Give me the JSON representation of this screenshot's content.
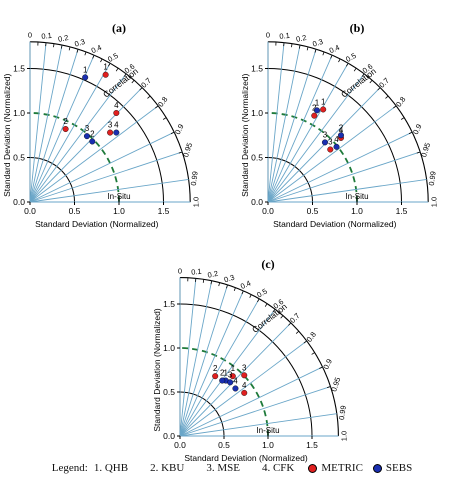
{
  "chart_data": [
    {
      "type": "scatter",
      "panel_label": "(a)",
      "xlabel": "Standard Deviation (Normalized)",
      "ylabel": "Standard Deviation (Normalized)",
      "correlation_label": "Correlation",
      "reference_label": "In-Situ",
      "reference_std": 1.0,
      "xlim": [
        0,
        1.8
      ],
      "ylim": [
        0,
        1.8
      ],
      "std_ticks": [
        "0.0",
        "0.5",
        "1.0",
        "1.5"
      ],
      "correlation_ticks": [
        "0",
        "0.1",
        "0.2",
        "0.3",
        "0.4",
        "0.5",
        "0.6",
        "0.7",
        "0.8",
        "0.9",
        "0.95",
        "0.99",
        "1.0"
      ],
      "series": [
        {
          "name": "METRIC",
          "color": "#e02020",
          "points": [
            {
              "label": "1",
              "x": 0.85,
              "y": 1.43
            },
            {
              "label": "2",
              "x": 0.4,
              "y": 0.82
            },
            {
              "label": "3",
              "x": 0.9,
              "y": 0.78
            },
            {
              "label": "4",
              "x": 0.97,
              "y": 1.0
            }
          ]
        },
        {
          "name": "SEBS",
          "color": "#1a2fb0",
          "points": [
            {
              "label": "1",
              "x": 0.62,
              "y": 1.4
            },
            {
              "label": "2",
              "x": 0.7,
              "y": 0.68
            },
            {
              "label": "3",
              "x": 0.64,
              "y": 0.74
            },
            {
              "label": "4",
              "x": 0.97,
              "y": 0.78
            }
          ]
        }
      ]
    },
    {
      "type": "scatter",
      "panel_label": "(b)",
      "xlabel": "Standard Deviation (Normalized)",
      "ylabel": "Standard Deviation (Normalized)",
      "correlation_label": "Correlation",
      "reference_label": "In-Situ",
      "reference_std": 1.0,
      "xlim": [
        0,
        1.8
      ],
      "ylim": [
        0,
        1.8
      ],
      "std_ticks": [
        "0.0",
        "0.5",
        "1.0",
        "1.5"
      ],
      "correlation_ticks": [
        "0",
        "0.1",
        "0.2",
        "0.3",
        "0.4",
        "0.5",
        "0.6",
        "0.7",
        "0.8",
        "0.9",
        "0.95",
        "0.99",
        "1.0"
      ],
      "series": [
        {
          "name": "METRIC",
          "color": "#e02020",
          "points": [
            {
              "label": "1",
              "x": 0.62,
              "y": 1.04
            },
            {
              "label": "2",
              "x": 0.52,
              "y": 0.97
            },
            {
              "label": "3",
              "x": 0.7,
              "y": 0.59
            },
            {
              "label": "4",
              "x": 0.82,
              "y": 0.72
            }
          ]
        },
        {
          "name": "SEBS",
          "color": "#1a2fb0",
          "points": [
            {
              "label": "1",
              "x": 0.55,
              "y": 1.03
            },
            {
              "label": "2",
              "x": 0.82,
              "y": 0.75
            },
            {
              "label": "3",
              "x": 0.64,
              "y": 0.67
            },
            {
              "label": "4",
              "x": 0.77,
              "y": 0.62
            }
          ]
        }
      ]
    },
    {
      "type": "scatter",
      "panel_label": "(c)",
      "xlabel": "Standard Deviation (Normalized)",
      "ylabel": "Standard Deviation (Normalized)",
      "correlation_label": "Correlation",
      "reference_label": "In-Situ",
      "reference_std": 1.0,
      "xlim": [
        0,
        1.8
      ],
      "ylim": [
        0,
        1.8
      ],
      "std_ticks": [
        "0.0",
        "0.5",
        "1.0",
        "1.5"
      ],
      "correlation_ticks": [
        "0",
        "0.1",
        "0.2",
        "0.3",
        "0.4",
        "0.5",
        "0.6",
        "0.7",
        "0.8",
        "0.9",
        "0.95",
        "0.99",
        "1.0"
      ],
      "series": [
        {
          "name": "METRIC",
          "color": "#e02020",
          "points": [
            {
              "label": "1",
              "x": 0.6,
              "y": 0.68
            },
            {
              "label": "2",
              "x": 0.4,
              "y": 0.68
            },
            {
              "label": "3",
              "x": 0.73,
              "y": 0.69
            },
            {
              "label": "4",
              "x": 0.73,
              "y": 0.49
            }
          ]
        },
        {
          "name": "SEBS",
          "color": "#1a2fb0",
          "points": [
            {
              "label": "1",
              "x": 0.52,
              "y": 0.63
            },
            {
              "label": "2",
              "x": 0.48,
              "y": 0.63
            },
            {
              "label": "3",
              "x": 0.57,
              "y": 0.61
            },
            {
              "label": "4",
              "x": 0.63,
              "y": 0.54
            }
          ]
        }
      ]
    }
  ],
  "legend": {
    "label": "Legend:",
    "items": [
      "1. QHB",
      "2. KBU",
      "3. MSE",
      "4. CFK"
    ],
    "methods": [
      {
        "name": "METRIC",
        "color": "#e02020"
      },
      {
        "name": "SEBS",
        "color": "#1a2fb0"
      }
    ]
  }
}
